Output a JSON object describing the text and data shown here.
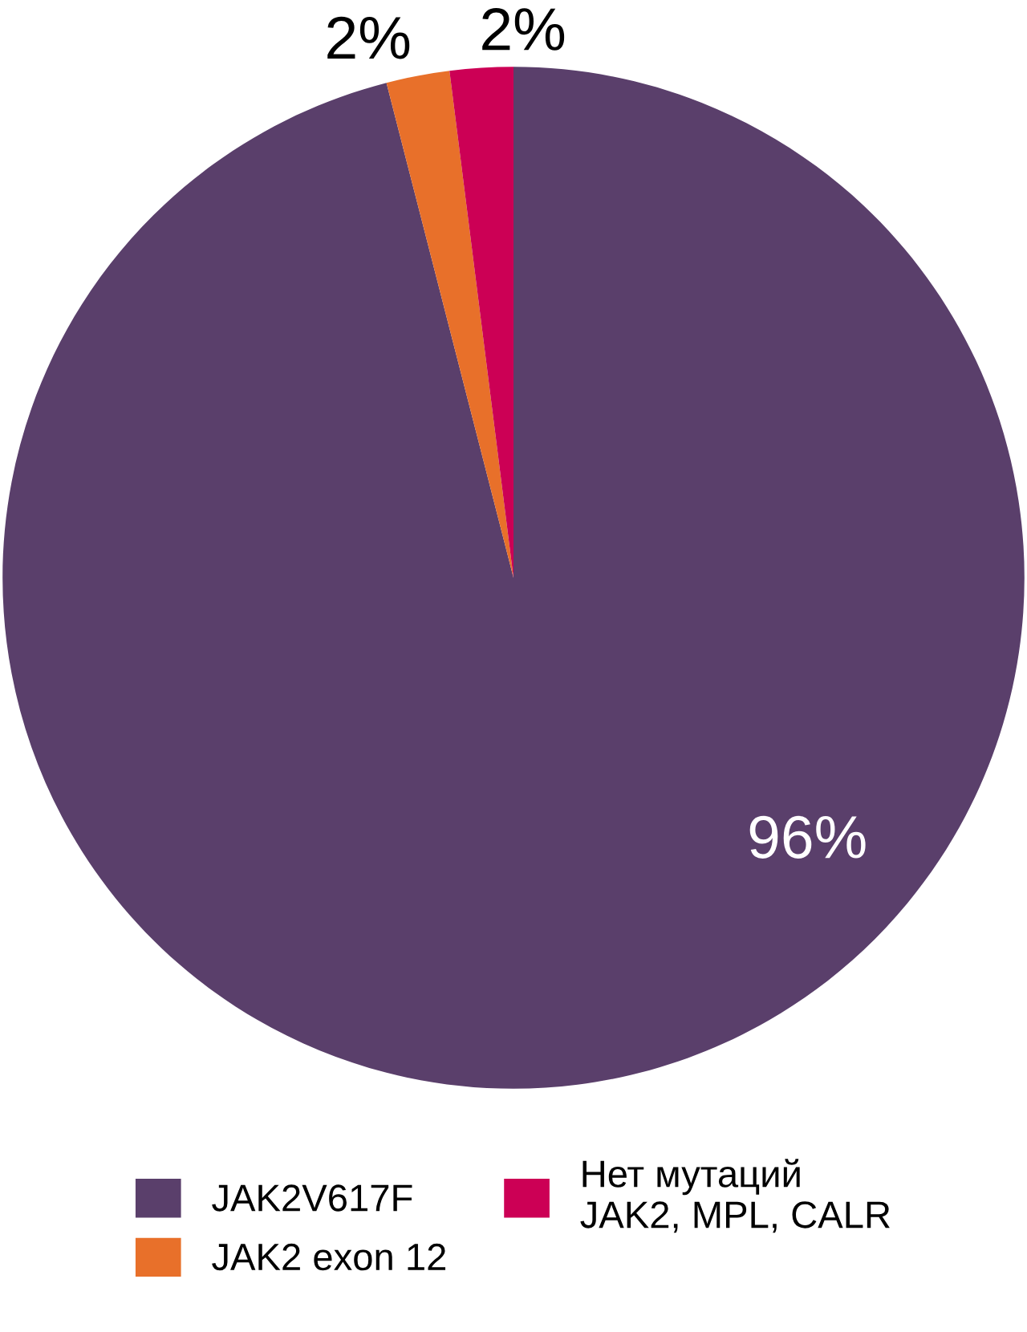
{
  "chart_data": {
    "type": "pie",
    "categories": [
      "JAK2V617F",
      "JAK2 exon 12",
      "Нет мутаций\nJAK2, MPL, CALR"
    ],
    "values": [
      96,
      2,
      2
    ],
    "value_labels": [
      "96%",
      "2%",
      "2%"
    ],
    "colors": [
      "#5a3f6b",
      "#e8702a",
      "#cc0055"
    ],
    "legend": "bottom"
  }
}
